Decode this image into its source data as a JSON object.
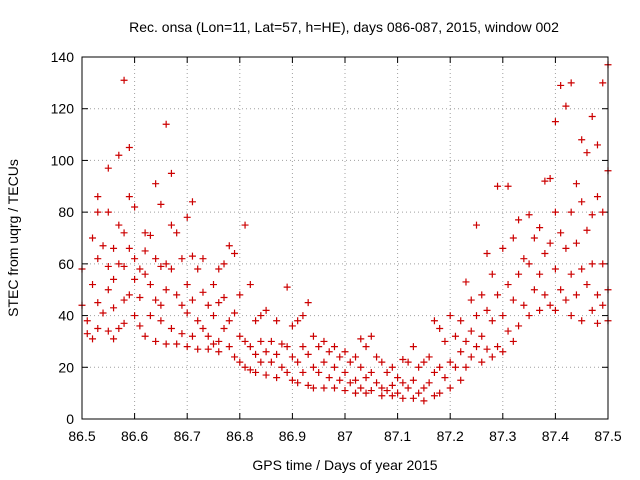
{
  "chart_data": {
    "type": "scatter",
    "title": "Rec. onsa (Lon=11, Lat=57, h=HE), days 086-087, 2015, window 002",
    "xlabel": "GPS time / Days of year 2015",
    "ylabel": "STEC from uqrg / TECUs",
    "xlim": [
      86.5,
      87.5
    ],
    "ylim": [
      0,
      140
    ],
    "xticks": [
      "86.5",
      "86.6",
      "86.7",
      "86.8",
      "86.9",
      "87",
      "87.1",
      "87.2",
      "87.3",
      "87.4",
      "87.5"
    ],
    "yticks": [
      "0",
      "20",
      "40",
      "60",
      "80",
      "100",
      "120",
      "140"
    ],
    "grid": true,
    "marker": "plus",
    "color": "#cc0000",
    "series": [
      {
        "points": [
          [
            86.5,
            58
          ],
          [
            86.5,
            44
          ],
          [
            86.51,
            33
          ],
          [
            86.51,
            38
          ],
          [
            86.52,
            52
          ],
          [
            86.52,
            70
          ],
          [
            86.52,
            31
          ],
          [
            86.53,
            86
          ],
          [
            86.53,
            80
          ],
          [
            86.53,
            62
          ],
          [
            86.53,
            45
          ],
          [
            86.53,
            35
          ],
          [
            86.54,
            67
          ],
          [
            86.54,
            41
          ],
          [
            86.55,
            97
          ],
          [
            86.55,
            80
          ],
          [
            86.55,
            59
          ],
          [
            86.55,
            50
          ],
          [
            86.55,
            34
          ],
          [
            86.56,
            66
          ],
          [
            86.56,
            54
          ],
          [
            86.56,
            43
          ],
          [
            86.56,
            31
          ],
          [
            86.57,
            102
          ],
          [
            86.57,
            75
          ],
          [
            86.57,
            60
          ],
          [
            86.57,
            35
          ],
          [
            86.58,
            131
          ],
          [
            86.58,
            72
          ],
          [
            86.58,
            59
          ],
          [
            86.58,
            46
          ],
          [
            86.58,
            37
          ],
          [
            86.59,
            105
          ],
          [
            86.59,
            86
          ],
          [
            86.59,
            66
          ],
          [
            86.59,
            48
          ],
          [
            86.6,
            82
          ],
          [
            86.6,
            62
          ],
          [
            86.6,
            54
          ],
          [
            86.6,
            40
          ],
          [
            86.61,
            58
          ],
          [
            86.61,
            47
          ],
          [
            86.61,
            36
          ],
          [
            86.62,
            72
          ],
          [
            86.62,
            65
          ],
          [
            86.62,
            56
          ],
          [
            86.62,
            32
          ],
          [
            86.63,
            71
          ],
          [
            86.63,
            52
          ],
          [
            86.63,
            40
          ],
          [
            86.64,
            91
          ],
          [
            86.64,
            62
          ],
          [
            86.64,
            46
          ],
          [
            86.64,
            30
          ],
          [
            86.65,
            83
          ],
          [
            86.65,
            59
          ],
          [
            86.65,
            44
          ],
          [
            86.65,
            38
          ],
          [
            86.66,
            114
          ],
          [
            86.66,
            60
          ],
          [
            86.66,
            50
          ],
          [
            86.66,
            29
          ],
          [
            86.67,
            95
          ],
          [
            86.67,
            75
          ],
          [
            86.67,
            58
          ],
          [
            86.67,
            35
          ],
          [
            86.68,
            72
          ],
          [
            86.68,
            48
          ],
          [
            86.68,
            29
          ],
          [
            86.69,
            62
          ],
          [
            86.69,
            44
          ],
          [
            86.69,
            33
          ],
          [
            86.7,
            78
          ],
          [
            86.7,
            52
          ],
          [
            86.7,
            41
          ],
          [
            86.7,
            28
          ],
          [
            86.71,
            84
          ],
          [
            86.71,
            63
          ],
          [
            86.71,
            46
          ],
          [
            86.71,
            32
          ],
          [
            86.72,
            58
          ],
          [
            86.72,
            38
          ],
          [
            86.72,
            27
          ],
          [
            86.73,
            62
          ],
          [
            86.73,
            49
          ],
          [
            86.73,
            35
          ],
          [
            86.74,
            44
          ],
          [
            86.74,
            32
          ],
          [
            86.74,
            27
          ],
          [
            86.75,
            52
          ],
          [
            86.75,
            40
          ],
          [
            86.75,
            29
          ],
          [
            86.76,
            58
          ],
          [
            86.76,
            45
          ],
          [
            86.76,
            30
          ],
          [
            86.76,
            26
          ],
          [
            86.77,
            60
          ],
          [
            86.77,
            47
          ],
          [
            86.77,
            35
          ],
          [
            86.78,
            67
          ],
          [
            86.78,
            38
          ],
          [
            86.78,
            28
          ],
          [
            86.79,
            64
          ],
          [
            86.79,
            41
          ],
          [
            86.79,
            24
          ],
          [
            86.8,
            48
          ],
          [
            86.8,
            32
          ],
          [
            86.8,
            22
          ],
          [
            86.81,
            75
          ],
          [
            86.81,
            30
          ],
          [
            86.81,
            20
          ],
          [
            86.82,
            52
          ],
          [
            86.82,
            28
          ],
          [
            86.82,
            19
          ],
          [
            86.83,
            38
          ],
          [
            86.83,
            25
          ],
          [
            86.83,
            18
          ],
          [
            86.84,
            40
          ],
          [
            86.84,
            30
          ],
          [
            86.84,
            22
          ],
          [
            86.85,
            42
          ],
          [
            86.85,
            26
          ],
          [
            86.85,
            17
          ],
          [
            86.86,
            30
          ],
          [
            86.86,
            22
          ],
          [
            86.87,
            38
          ],
          [
            86.87,
            25
          ],
          [
            86.87,
            16
          ],
          [
            86.88,
            29
          ],
          [
            86.88,
            20
          ],
          [
            86.89,
            51
          ],
          [
            86.89,
            28
          ],
          [
            86.89,
            18
          ],
          [
            86.9,
            36
          ],
          [
            86.9,
            24
          ],
          [
            86.9,
            15
          ],
          [
            86.91,
            38
          ],
          [
            86.91,
            22
          ],
          [
            86.91,
            14
          ],
          [
            86.92,
            40
          ],
          [
            86.92,
            28
          ],
          [
            86.92,
            18
          ],
          [
            86.93,
            45
          ],
          [
            86.93,
            25
          ],
          [
            86.93,
            13
          ],
          [
            86.94,
            32
          ],
          [
            86.94,
            20
          ],
          [
            86.94,
            12
          ],
          [
            86.95,
            28
          ],
          [
            86.95,
            18
          ],
          [
            86.96,
            30
          ],
          [
            86.96,
            22
          ],
          [
            86.96,
            12
          ],
          [
            86.97,
            26
          ],
          [
            86.97,
            16
          ],
          [
            86.98,
            28
          ],
          [
            86.98,
            20
          ],
          [
            86.98,
            12
          ],
          [
            86.99,
            24
          ],
          [
            86.99,
            15
          ],
          [
            87.0,
            26
          ],
          [
            87.0,
            18
          ],
          [
            87.0,
            11
          ],
          [
            87.01,
            22
          ],
          [
            87.01,
            14
          ],
          [
            87.02,
            24
          ],
          [
            87.02,
            15
          ],
          [
            87.02,
            10
          ],
          [
            87.03,
            31
          ],
          [
            87.03,
            20
          ],
          [
            87.03,
            12
          ],
          [
            87.04,
            28
          ],
          [
            87.04,
            16
          ],
          [
            87.04,
            10
          ],
          [
            87.05,
            32
          ],
          [
            87.05,
            18
          ],
          [
            87.05,
            11
          ],
          [
            87.06,
            24
          ],
          [
            87.06,
            14
          ],
          [
            87.07,
            22
          ],
          [
            87.07,
            12
          ],
          [
            87.07,
            9
          ],
          [
            87.08,
            18
          ],
          [
            87.08,
            11
          ],
          [
            87.09,
            20
          ],
          [
            87.09,
            13
          ],
          [
            87.09,
            9
          ],
          [
            87.1,
            16
          ],
          [
            87.1,
            10
          ],
          [
            87.11,
            23
          ],
          [
            87.11,
            14
          ],
          [
            87.11,
            8
          ],
          [
            87.12,
            22
          ],
          [
            87.12,
            12
          ],
          [
            87.13,
            28
          ],
          [
            87.13,
            15
          ],
          [
            87.13,
            8
          ],
          [
            87.14,
            20
          ],
          [
            87.14,
            10
          ],
          [
            87.15,
            22
          ],
          [
            87.15,
            12
          ],
          [
            87.15,
            7
          ],
          [
            87.16,
            24
          ],
          [
            87.16,
            14
          ],
          [
            87.17,
            38
          ],
          [
            87.17,
            18
          ],
          [
            87.17,
            9
          ],
          [
            87.18,
            35
          ],
          [
            87.18,
            20
          ],
          [
            87.18,
            10
          ],
          [
            87.19,
            30
          ],
          [
            87.19,
            16
          ],
          [
            87.2,
            40
          ],
          [
            87.2,
            22
          ],
          [
            87.2,
            12
          ],
          [
            87.21,
            32
          ],
          [
            87.21,
            20
          ],
          [
            87.22,
            38
          ],
          [
            87.22,
            26
          ],
          [
            87.22,
            15
          ],
          [
            87.23,
            53
          ],
          [
            87.23,
            30
          ],
          [
            87.23,
            20
          ],
          [
            87.24,
            46
          ],
          [
            87.24,
            34
          ],
          [
            87.24,
            24
          ],
          [
            87.25,
            75
          ],
          [
            87.25,
            40
          ],
          [
            87.25,
            28
          ],
          [
            87.26,
            48
          ],
          [
            87.26,
            32
          ],
          [
            87.26,
            22
          ],
          [
            87.27,
            64
          ],
          [
            87.27,
            42
          ],
          [
            87.27,
            27
          ],
          [
            87.28,
            56
          ],
          [
            87.28,
            38
          ],
          [
            87.28,
            24
          ],
          [
            87.29,
            90
          ],
          [
            87.29,
            48
          ],
          [
            87.29,
            28
          ],
          [
            87.3,
            66
          ],
          [
            87.3,
            40
          ],
          [
            87.3,
            26
          ],
          [
            87.31,
            90
          ],
          [
            87.31,
            52
          ],
          [
            87.31,
            34
          ],
          [
            87.32,
            70
          ],
          [
            87.32,
            46
          ],
          [
            87.32,
            30
          ],
          [
            87.33,
            77
          ],
          [
            87.33,
            56
          ],
          [
            87.33,
            36
          ],
          [
            87.34,
            62
          ],
          [
            87.34,
            44
          ],
          [
            87.35,
            79
          ],
          [
            87.35,
            60
          ],
          [
            87.35,
            40
          ],
          [
            87.36,
            70
          ],
          [
            87.36,
            50
          ],
          [
            87.37,
            74
          ],
          [
            87.37,
            56
          ],
          [
            87.37,
            42
          ],
          [
            87.38,
            92
          ],
          [
            87.38,
            64
          ],
          [
            87.38,
            48
          ],
          [
            87.39,
            93
          ],
          [
            87.39,
            68
          ],
          [
            87.39,
            44
          ],
          [
            87.4,
            115
          ],
          [
            87.4,
            80
          ],
          [
            87.4,
            58
          ],
          [
            87.4,
            42
          ],
          [
            87.41,
            129
          ],
          [
            87.41,
            72
          ],
          [
            87.41,
            50
          ],
          [
            87.42,
            121
          ],
          [
            87.42,
            66
          ],
          [
            87.42,
            46
          ],
          [
            87.43,
            130
          ],
          [
            87.43,
            80
          ],
          [
            87.43,
            56
          ],
          [
            87.43,
            40
          ],
          [
            87.44,
            91
          ],
          [
            87.44,
            68
          ],
          [
            87.44,
            48
          ],
          [
            87.45,
            108
          ],
          [
            87.45,
            84
          ],
          [
            87.45,
            58
          ],
          [
            87.45,
            38
          ],
          [
            87.46,
            103
          ],
          [
            87.46,
            73
          ],
          [
            87.46,
            52
          ],
          [
            87.47,
            117
          ],
          [
            87.47,
            79
          ],
          [
            87.47,
            60
          ],
          [
            87.47,
            42
          ],
          [
            87.48,
            106
          ],
          [
            87.48,
            86
          ],
          [
            87.48,
            48
          ],
          [
            87.48,
            37
          ],
          [
            87.49,
            130
          ],
          [
            87.49,
            80
          ],
          [
            87.49,
            60
          ],
          [
            87.49,
            44
          ],
          [
            87.5,
            137
          ],
          [
            87.5,
            96
          ],
          [
            87.5,
            50
          ],
          [
            87.5,
            38
          ]
        ]
      }
    ]
  }
}
